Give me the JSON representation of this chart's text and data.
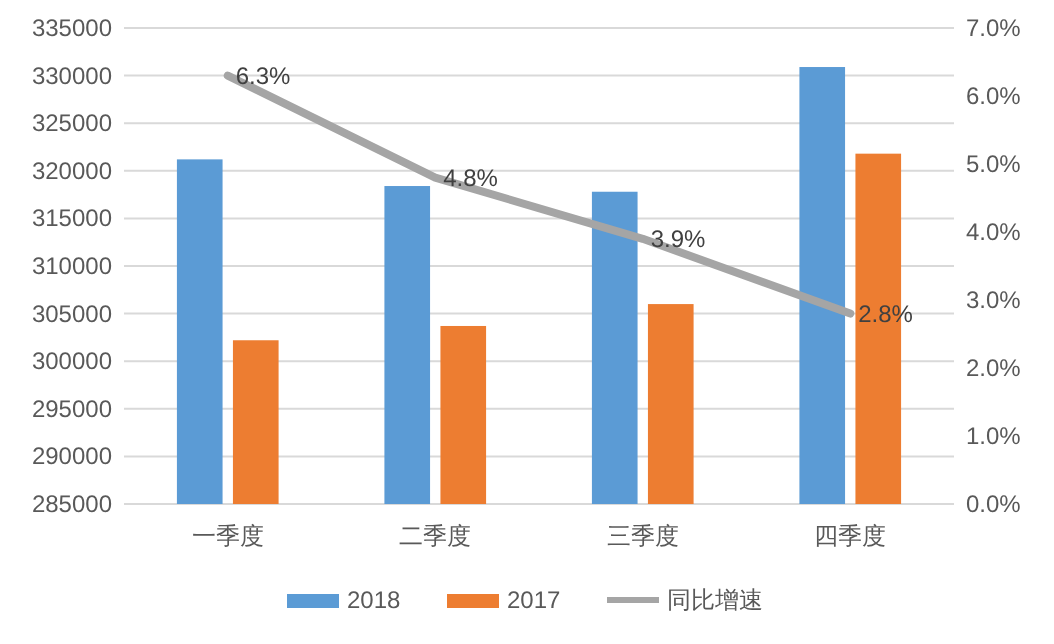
{
  "chart_data": {
    "type": "bar",
    "categories": [
      "一季度",
      "二季度",
      "三季度",
      "四季度"
    ],
    "series": [
      {
        "name": "2018",
        "color": "#5b9bd5",
        "values": [
          321200,
          318400,
          317800,
          330900
        ]
      },
      {
        "name": "2017",
        "color": "#ed7d31",
        "values": [
          302200,
          303700,
          306000,
          321800
        ]
      },
      {
        "name": "同比增速",
        "type": "line",
        "axis": "y2",
        "color": "#a5a5a5",
        "values": [
          6.3,
          4.8,
          3.9,
          2.8
        ],
        "value_labels": [
          "6.3%",
          "4.8%",
          "3.9%",
          "2.8%"
        ]
      }
    ],
    "ylim": [
      285000,
      335000
    ],
    "yticks": [
      285000,
      290000,
      295000,
      300000,
      305000,
      310000,
      315000,
      320000,
      325000,
      330000,
      335000
    ],
    "y2lim": [
      0,
      7
    ],
    "y2ticks": [
      {
        "value": 0,
        "label": "0.0%"
      },
      {
        "value": 1,
        "label": "1.0%"
      },
      {
        "value": 2,
        "label": "2.0%"
      },
      {
        "value": 3,
        "label": "3.0%"
      },
      {
        "value": 4,
        "label": "4.0%"
      },
      {
        "value": 5,
        "label": "5.0%"
      },
      {
        "value": 6,
        "label": "6.0%"
      },
      {
        "value": 7,
        "label": "7.0%"
      }
    ],
    "grid": "y",
    "legend": "bottom",
    "marker": "none"
  }
}
